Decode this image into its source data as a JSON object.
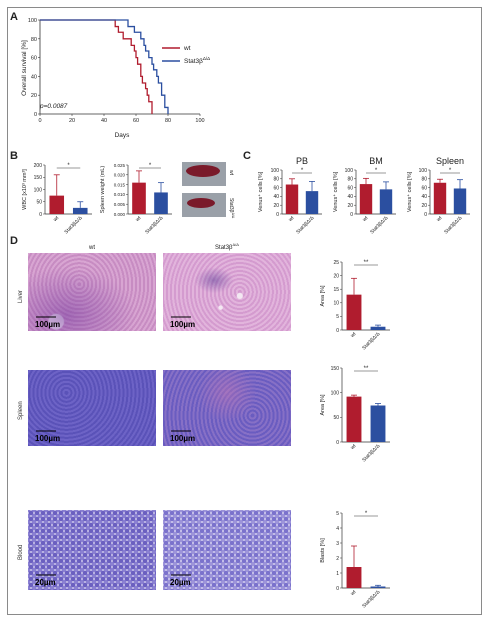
{
  "panels": {
    "A": {
      "letter": "A",
      "ylabel": "Overall survival [%]",
      "xlabel": "Days",
      "pvalue": "p=0.0087",
      "legend": [
        "wt",
        "Stat3β"
      ],
      "legend_sup": "Δ/Δ"
    },
    "B": {
      "letter": "B"
    },
    "C": {
      "letter": "C"
    },
    "D": {
      "letter": "D",
      "col_wt": "wt",
      "col_mut": "Stat3β",
      "col_mut_sup": "Δ/Δ",
      "row_liver": "Liver",
      "row_spleen": "Spleen",
      "row_blood": "Blood",
      "scale_100": "100µm",
      "scale_20": "20µm"
    }
  },
  "colors": {
    "wt": "#b01c2e",
    "mut": "#2b4fa0"
  },
  "chart_data": [
    {
      "id": "A",
      "type": "line",
      "title": "",
      "xlabel": "Days",
      "ylabel": "Overall survival [%]",
      "xlim": [
        0,
        100
      ],
      "ylim": [
        0,
        100
      ],
      "xticks": [
        0,
        20,
        40,
        60,
        80,
        100
      ],
      "yticks": [
        0,
        20,
        40,
        60,
        80,
        100
      ],
      "series": [
        {
          "name": "wt",
          "x": [
            0,
            45,
            47,
            49,
            52,
            55,
            57,
            59,
            60,
            61,
            63,
            64,
            66,
            67,
            68,
            70
          ],
          "y": [
            100,
            100,
            93,
            87,
            80,
            80,
            73,
            67,
            60,
            53,
            40,
            33,
            27,
            20,
            13,
            0
          ]
        },
        {
          "name": "Stat3βΔ/Δ",
          "x": [
            0,
            48,
            55,
            59,
            63,
            65,
            66,
            68,
            70,
            71,
            73,
            74,
            76,
            78,
            80
          ],
          "y": [
            100,
            100,
            93,
            87,
            80,
            73,
            67,
            60,
            53,
            47,
            40,
            33,
            20,
            7,
            0
          ]
        }
      ]
    },
    {
      "id": "B1",
      "type": "bar",
      "ylabel": "WBC [x10³ mm³]",
      "categories": [
        "wt",
        "Stat3βΔ/Δ"
      ],
      "values": [
        75,
        25
      ],
      "errors": [
        85,
        25
      ],
      "ylim": [
        0,
        200
      ],
      "yticks": [
        0,
        50,
        100,
        150,
        200
      ],
      "significance": "*"
    },
    {
      "id": "B2",
      "type": "bar",
      "ylabel": "Spleen weight (mL)",
      "categories": [
        "wt",
        "Stat3βΔ/Δ"
      ],
      "values": [
        0.016,
        0.011
      ],
      "errors": [
        0.006,
        0.005
      ],
      "ylim": [
        0,
        0.025
      ],
      "yticks": [
        0,
        0.005,
        0.01,
        0.015,
        0.02,
        0.025
      ],
      "ytick_labels": [
        "0.000",
        "0.005",
        "0.010",
        "0.015",
        "0.020",
        "0.025"
      ],
      "significance": "*"
    },
    {
      "id": "C1",
      "type": "bar",
      "title": "PB",
      "ylabel": "Venus⁺ cells [%]",
      "categories": [
        "wt",
        "Stat3βΔ/Δ"
      ],
      "values": [
        67,
        52
      ],
      "errors": [
        13,
        22
      ],
      "ylim": [
        0,
        100
      ],
      "yticks": [
        0,
        20,
        40,
        60,
        80,
        100
      ],
      "significance": "*"
    },
    {
      "id": "C2",
      "type": "bar",
      "title": "BM",
      "ylabel": "Venus⁺ cells [%]",
      "categories": [
        "wt",
        "Stat3βΔ/Δ"
      ],
      "values": [
        68,
        56
      ],
      "errors": [
        13,
        17
      ],
      "ylim": [
        0,
        100
      ],
      "yticks": [
        0,
        20,
        40,
        60,
        80,
        100
      ],
      "significance": "*"
    },
    {
      "id": "C3",
      "type": "bar",
      "title": "Spleen",
      "ylabel": "Venus⁺ cells [%]",
      "categories": [
        "wt",
        "Stat3βΔ/Δ"
      ],
      "values": [
        71,
        58
      ],
      "errors": [
        8,
        20
      ],
      "ylim": [
        0,
        100
      ],
      "yticks": [
        0,
        20,
        40,
        60,
        80,
        100
      ],
      "significance": "*"
    },
    {
      "id": "D1",
      "type": "bar",
      "ylabel": "Area [%]",
      "categories": [
        "wt",
        "Stat3βΔ/Δ"
      ],
      "values": [
        13,
        1.2
      ],
      "errors": [
        6,
        0.6
      ],
      "ylim": [
        0,
        25
      ],
      "yticks": [
        0,
        5,
        10,
        15,
        20,
        25
      ],
      "significance": "**"
    },
    {
      "id": "D2",
      "type": "bar",
      "ylabel": "Area [%]",
      "categories": [
        "wt",
        "Stat3βΔ/Δ"
      ],
      "values": [
        92,
        74
      ],
      "errors": [
        3,
        4
      ],
      "ylim": [
        0,
        150
      ],
      "yticks": [
        0,
        50,
        100,
        150
      ],
      "significance": "**"
    },
    {
      "id": "D3",
      "type": "bar",
      "ylabel": "Blasts [%]",
      "categories": [
        "wt",
        "Stat3βΔ/Δ"
      ],
      "values": [
        1.4,
        0.1
      ],
      "errors": [
        1.4,
        0.08
      ],
      "ylim": [
        0,
        5
      ],
      "yticks": [
        0,
        1,
        2,
        3,
        4,
        5
      ],
      "significance": "*"
    }
  ]
}
